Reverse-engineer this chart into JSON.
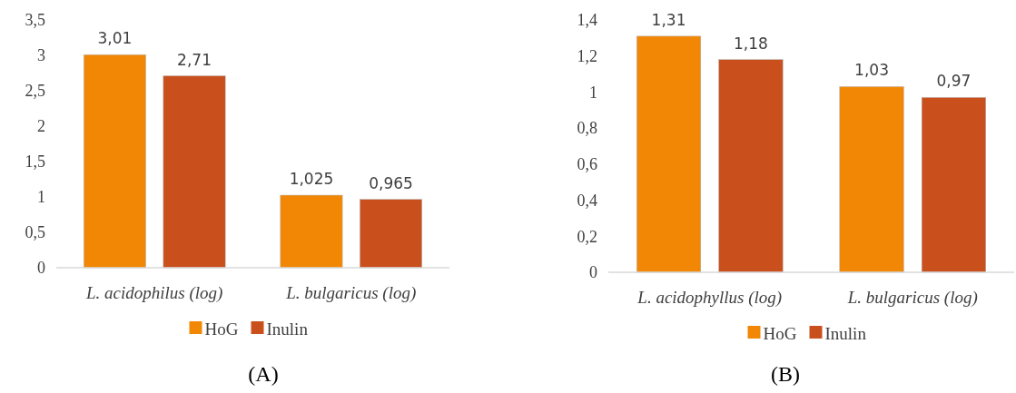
{
  "chart_data": [
    {
      "type": "bar",
      "categories": [
        "L. acidophilus (log)",
        "L. bulgaricus (log)"
      ],
      "series": [
        {
          "name": "HoG",
          "color": "#f28705",
          "values": [
            3.01,
            1.025
          ],
          "value_labels": [
            "3,01",
            "1,025"
          ]
        },
        {
          "name": "Inulin",
          "color": "#c9501c",
          "values": [
            2.71,
            0.965
          ],
          "value_labels": [
            "2,71",
            "0,965"
          ]
        }
      ],
      "ylim": [
        0,
        3.5
      ],
      "yticks": [
        0,
        {
          "value": 0.5,
          "label": "0,5"
        },
        1,
        {
          "value": 1.5,
          "label": "1,5"
        },
        2,
        {
          "value": 2.5,
          "label": "2,5"
        },
        3,
        {
          "value": 3.5,
          "label": "3,5"
        }
      ],
      "grid": false,
      "legend": "bottom",
      "annotations": [
        "(A)"
      ]
    },
    {
      "type": "bar",
      "categories": [
        "L. acidophyllus (log)",
        "L. bulgaricus (log)"
      ],
      "series": [
        {
          "name": "HoG",
          "color": "#f28705",
          "values": [
            1.31,
            1.03
          ],
          "value_labels": [
            "1,31",
            "1,03"
          ]
        },
        {
          "name": "Inulin",
          "color": "#c9501c",
          "values": [
            1.18,
            0.97
          ],
          "value_labels": [
            "1,18",
            "0,97"
          ]
        }
      ],
      "ylim": [
        0,
        1.4
      ],
      "yticks": [
        0,
        {
          "value": 0.2,
          "label": "0,2"
        },
        {
          "value": 0.4,
          "label": "0,4"
        },
        {
          "value": 0.6,
          "label": "0,6"
        },
        {
          "value": 0.8,
          "label": "0,8"
        },
        1,
        {
          "value": 1.2,
          "label": "1,2"
        },
        {
          "value": 1.4,
          "label": "1,4"
        }
      ],
      "grid": false,
      "legend": "bottom",
      "annotations": [
        "(B)"
      ]
    }
  ]
}
